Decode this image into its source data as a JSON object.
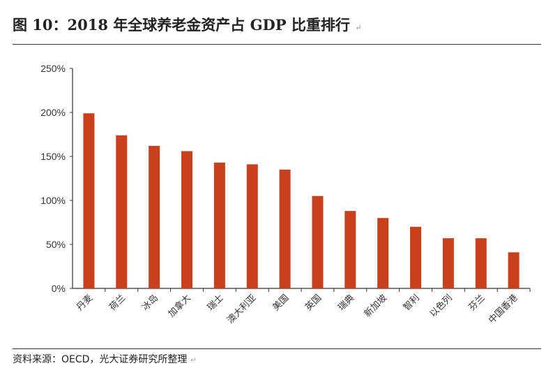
{
  "title": "图 10：2018 年全球养老金资产占 GDP 比重排行",
  "source": "资料来源：OECD，光大证券研究所整理",
  "paragraph_mark": "↵",
  "chart_data": {
    "type": "bar",
    "title": "",
    "xlabel": "",
    "ylabel": "",
    "ylim": [
      0,
      250
    ],
    "yticks": [
      "0%",
      "50%",
      "100%",
      "150%",
      "200%",
      "250%"
    ],
    "grid": false,
    "bar_color": "#C9401C",
    "categories": [
      "丹麦",
      "荷兰",
      "冰岛",
      "加拿大",
      "瑞士",
      "澳大利亚",
      "美国",
      "英国",
      "瑞典",
      "新加坡",
      "智利",
      "以色列",
      "芬兰",
      "中国香港"
    ],
    "values": [
      199,
      174,
      162,
      156,
      143,
      141,
      135,
      105,
      88,
      80,
      70,
      57,
      57,
      41
    ]
  }
}
